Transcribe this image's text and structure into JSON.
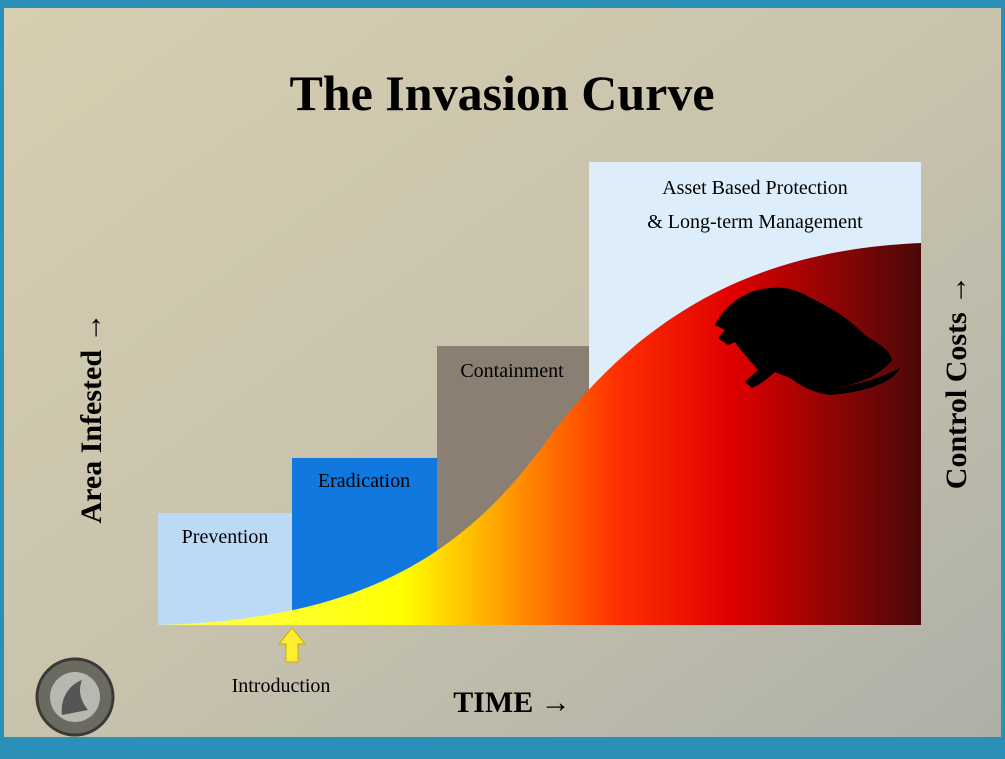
{
  "title": "The Invasion Curve",
  "stages": [
    {
      "label": "Prevention"
    },
    {
      "label": "Eradication"
    },
    {
      "label": "Containment"
    },
    {
      "label": "Asset Based Protection",
      "label2": "& Long-term Management"
    }
  ],
  "y_axis_label": "Area Infested →",
  "y2_axis_label": "Control Costs →",
  "x_axis_label": "TIME →",
  "marker_label": "Introduction"
}
